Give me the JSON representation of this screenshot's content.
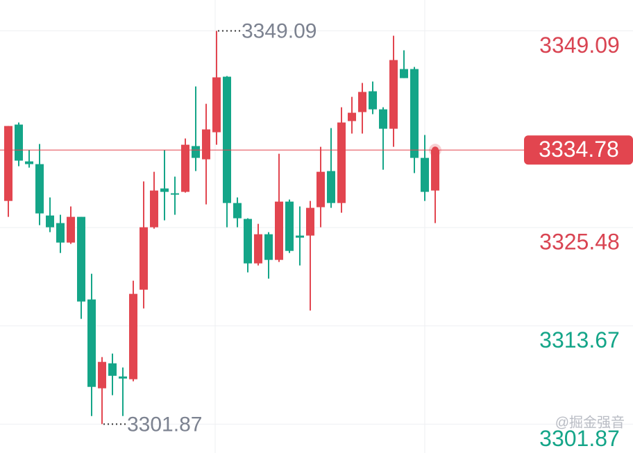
{
  "chart_data": {
    "type": "candlestick",
    "open": [
      3328.67,
      3337.84,
      3333.42,
      3333.09,
      3326.92,
      3326.01,
      3323.67,
      3326.76,
      3316.84,
      3306.17,
      3309.17,
      3307.59,
      3307.26,
      3318.01,
      3325.51,
      3330.17,
      3329.59,
      3329.76,
      3335.26,
      3333.67,
      3336.92,
      3343.59,
      3328.42,
      3326.51,
      3321.17,
      3324.67,
      3321.59,
      3328.59,
      3324.51,
      3324.51,
      3327.92,
      3332.26,
      3328.42,
      3338.26,
      3339.34,
      3341.84,
      3339.67,
      3337.34,
      3344.51,
      3344.51,
      3333.84,
      3329.92
    ],
    "high": [
      3337.67,
      3338.09,
      3334.76,
      3335.51,
      3329.09,
      3327.01,
      3328.01,
      3326.76,
      3319.92,
      3309.92,
      3310.34,
      3308.67,
      3319.09,
      3331.01,
      3332.17,
      3334.76,
      3331.59,
      3336.17,
      3342.42,
      3340.34,
      3349.09,
      3343.67,
      3329.09,
      3326.59,
      3325.92,
      3324.92,
      3334.34,
      3328.84,
      3328.01,
      3328.67,
      3335.17,
      3337.42,
      3339.92,
      3341.17,
      3342.84,
      3343.01,
      3339.92,
      3348.51,
      3346.76,
      3344.76,
      3336.59,
      3334.78
    ],
    "low": [
      3326.76,
      3332.84,
      3332.67,
      3325.76,
      3324.92,
      3322.42,
      3323.51,
      3314.51,
      3302.84,
      3301.87,
      3305.34,
      3302.84,
      3307.01,
      3315.76,
      3325.34,
      3326.34,
      3327.01,
      3329.67,
      3332.26,
      3328.26,
      3335.42,
      3325.51,
      3325.51,
      3320.09,
      3320.92,
      3319.34,
      3321.34,
      3322.42,
      3320.92,
      3315.51,
      3325.51,
      3327.84,
      3327.26,
      3336.76,
      3336.76,
      3339.09,
      3332.42,
      3335.17,
      3343.42,
      3332.01,
      3328.67,
      3326.01
    ],
    "close": [
      3337.67,
      3333.51,
      3333.09,
      3327.17,
      3325.51,
      3323.67,
      3326.76,
      3316.59,
      3306.34,
      3309.34,
      3307.67,
      3307.34,
      3317.51,
      3325.51,
      3329.92,
      3329.76,
      3329.51,
      3335.42,
      3333.84,
      3337.26,
      3343.51,
      3328.42,
      3326.59,
      3321.17,
      3324.67,
      3321.59,
      3328.59,
      3322.67,
      3324.26,
      3327.84,
      3332.17,
      3328.42,
      3338.09,
      3339.26,
      3341.76,
      3339.67,
      3337.34,
      3345.59,
      3343.42,
      3333.84,
      3329.76,
      3334.78
    ],
    "up_color": "#e2454f",
    "down_color": "#14a588",
    "ylim": [
      3298.4,
      3352.8
    ],
    "yticks": [
      3349.09,
      3325.48,
      3313.67,
      3301.87
    ],
    "ytick_colors": [
      "#d94452",
      "#d94452",
      "#14a588",
      "#14a588"
    ],
    "grid": true,
    "watermark": "@掘金强音"
  }
}
